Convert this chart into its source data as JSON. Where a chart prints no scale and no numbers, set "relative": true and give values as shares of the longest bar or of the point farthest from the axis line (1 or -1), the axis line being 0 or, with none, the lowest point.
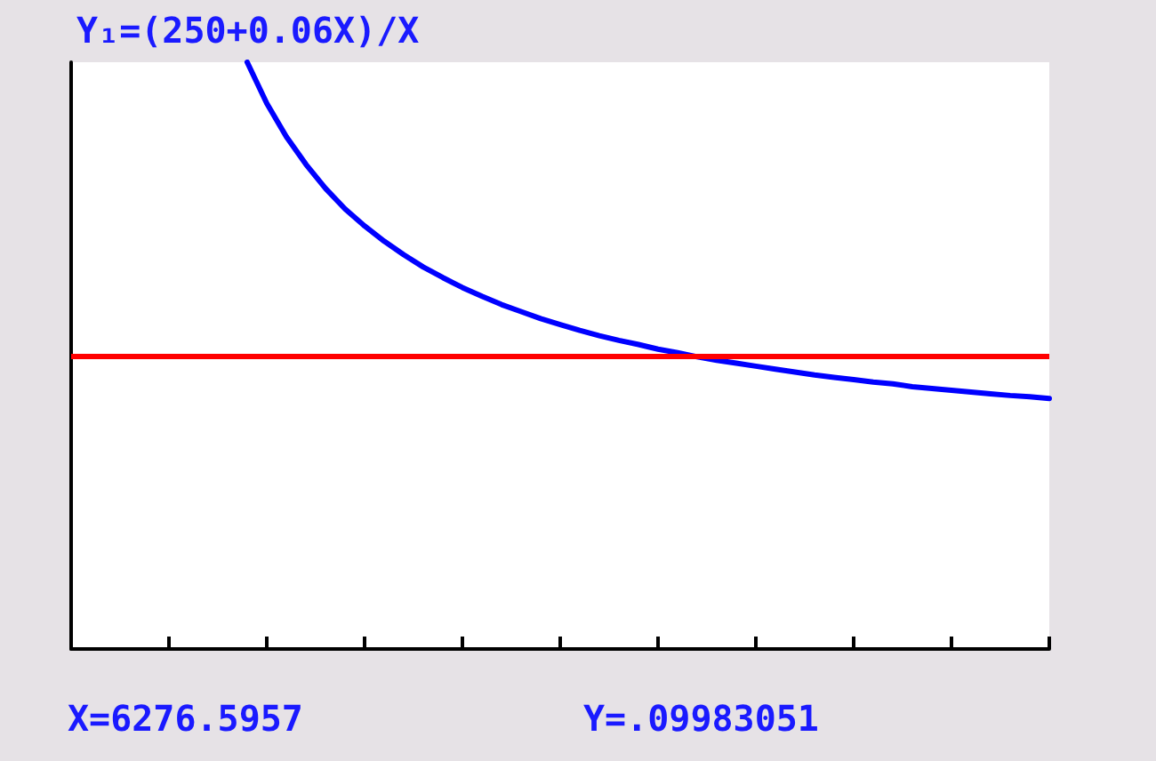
{
  "chart_data": {
    "type": "line",
    "title": "Y₁=(250+0.06X)/X",
    "relative": true,
    "categories": [
      null,
      null,
      null,
      null,
      null,
      null,
      null,
      null,
      null,
      null,
      null,
      null,
      null,
      null,
      null,
      null,
      null,
      null,
      null,
      null,
      null,
      null,
      null,
      null,
      null,
      null,
      null,
      null,
      null,
      null,
      null,
      null,
      null,
      null,
      null,
      null,
      null,
      null,
      null,
      null,
      null,
      null,
      null,
      null,
      null,
      null,
      null,
      null,
      null,
      null,
      null
    ],
    "series": [
      {
        "color": "#0000ff",
        "values": [
          null,
          null,
          null,
          null,
          null,
          null,
          null,
          null,
          null,
          1,
          0.93,
          0.873,
          0.826,
          0.785,
          0.75,
          0.721,
          0.695,
          0.672,
          0.651,
          0.633,
          0.616,
          0.601,
          0.587,
          0.575,
          0.563,
          0.553,
          0.543,
          0.534,
          0.526,
          0.519,
          0.511,
          0.505,
          0.498,
          0.492,
          0.487,
          0.482,
          0.477,
          0.472,
          0.467,
          0.463,
          0.459,
          0.455,
          0.452,
          0.447,
          0.444,
          0.441,
          0.438,
          0.435,
          0.432,
          0.43,
          0.427
        ]
      }
    ],
    "ref_lines": [
      {
        "axis": "y",
        "value": 0.503,
        "color": "#ff0000",
        "line_style": "solid"
      }
    ],
    "annotations": [
      "X=6276.5957",
      "Y=.09983051"
    ],
    "grid": false,
    "marker": "none",
    "line_style": "solid"
  }
}
